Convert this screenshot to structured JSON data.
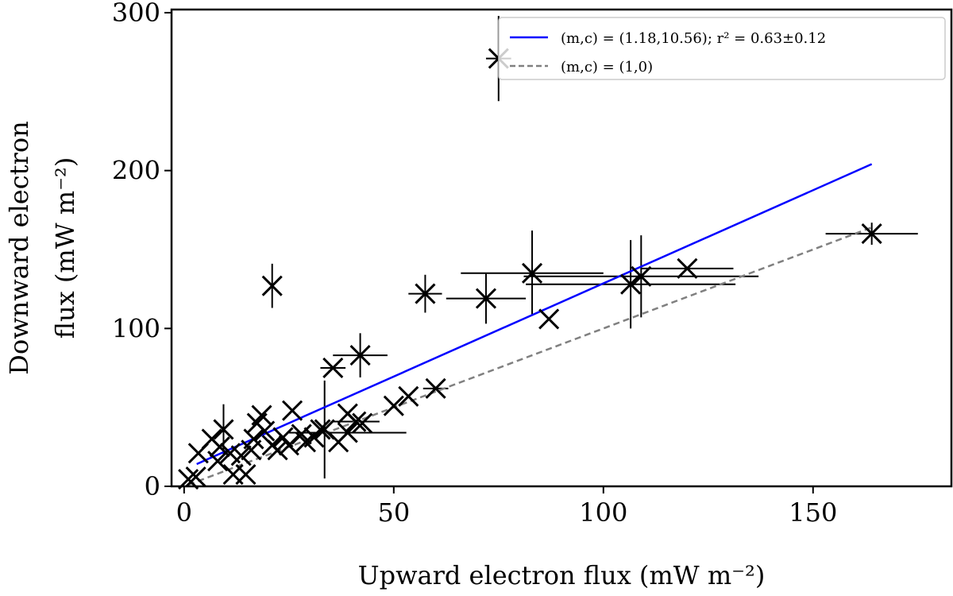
{
  "chart_data": {
    "type": "scatter",
    "title": "",
    "xlabel": "Upward electron flux (mW m⁻²)",
    "ylabel_lines": [
      "Downward electron",
      "flux (mW m⁻²)"
    ],
    "xlim": [
      -3,
      183
    ],
    "ylim": [
      0,
      302
    ],
    "xticks": [
      0,
      50,
      100,
      150
    ],
    "yticks": [
      0,
      100,
      200,
      300
    ],
    "grid": false,
    "legend_placement": "top-right",
    "points_fields": [
      "x",
      "y",
      "xerr",
      "yerr"
    ],
    "points": [
      [
        75,
        271,
        3,
        27
      ],
      [
        21,
        127,
        0,
        14
      ],
      [
        57.5,
        122,
        4,
        12
      ],
      [
        72,
        119,
        9.5,
        16
      ],
      [
        83,
        135,
        17,
        27
      ],
      [
        87,
        106,
        0,
        0
      ],
      [
        106.5,
        128,
        25,
        28
      ],
      [
        109,
        133,
        28,
        26
      ],
      [
        120,
        138,
        11,
        0
      ],
      [
        164,
        160,
        11,
        7
      ],
      [
        42,
        83,
        6.5,
        14
      ],
      [
        35.5,
        75,
        3,
        0
      ],
      [
        60,
        62,
        3,
        0
      ],
      [
        53.5,
        57,
        0,
        0
      ],
      [
        50,
        51,
        0,
        0
      ],
      [
        25.8,
        48,
        0,
        0
      ],
      [
        39,
        46,
        0,
        0
      ],
      [
        41,
        41,
        5.6,
        0
      ],
      [
        42.5,
        40,
        0,
        0
      ],
      [
        39,
        34,
        14,
        0
      ],
      [
        33.5,
        36,
        0,
        31
      ],
      [
        32.5,
        36,
        0,
        0
      ],
      [
        36.8,
        28,
        0,
        0
      ],
      [
        31,
        31,
        0,
        0
      ],
      [
        29,
        28,
        0,
        0
      ],
      [
        28,
        33,
        0,
        0
      ],
      [
        25,
        26,
        0,
        0
      ],
      [
        23.6,
        31,
        0,
        0
      ],
      [
        22.3,
        23,
        0,
        0
      ],
      [
        21,
        26,
        0,
        0
      ],
      [
        18.5,
        45,
        0,
        0
      ],
      [
        17.4,
        40,
        0,
        0
      ],
      [
        19.2,
        35,
        0,
        0
      ],
      [
        16.6,
        30,
        0,
        0
      ],
      [
        16,
        23,
        0,
        0
      ],
      [
        9.4,
        36,
        0,
        16
      ],
      [
        8.5,
        25,
        0,
        0
      ],
      [
        3.4,
        21,
        0,
        0
      ],
      [
        2.8,
        6,
        0,
        0
      ],
      [
        1,
        4.5,
        0,
        0
      ],
      [
        8,
        16,
        0,
        0
      ],
      [
        11,
        21,
        0,
        0
      ],
      [
        13.6,
        19.5,
        0,
        0
      ],
      [
        14.7,
        7.5,
        0,
        0
      ],
      [
        11.7,
        7.5,
        0,
        0
      ],
      [
        6.6,
        30,
        0,
        0
      ]
    ],
    "series": [
      {
        "name": "(m,c) = (1.18,10.56); r² = 0.63±0.12",
        "type": "line",
        "slope": 1.18,
        "intercept": 10.56,
        "x_range": [
          3,
          164
        ],
        "color": "#0000ff",
        "style": "solid"
      },
      {
        "name": "(m,c) = (1,0)",
        "type": "line",
        "slope": 1,
        "intercept": 0,
        "x_range": [
          1,
          164
        ],
        "color": "#808080",
        "style": "dashed"
      }
    ],
    "marker_color": "#000000"
  }
}
